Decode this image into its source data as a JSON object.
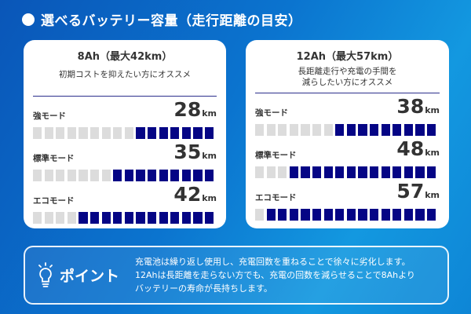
{
  "header": {
    "title": "選べるバッテリー容量（走行距離の目安）"
  },
  "colors": {
    "filled": "#050585",
    "empty": "#dcdcdc",
    "background": "#0b74cf"
  },
  "segments_total": 16,
  "cards": [
    {
      "title": "8Ah（最大42km）",
      "subtitle": [
        "初期コストを抑えたい方にオススメ"
      ],
      "modes": [
        {
          "label": "強モード",
          "value": "28",
          "unit": "km",
          "filled": 7
        },
        {
          "label": "標準モード",
          "value": "35",
          "unit": "km",
          "filled": 9
        },
        {
          "label": "エコモード",
          "value": "42",
          "unit": "km",
          "filled": 12
        }
      ]
    },
    {
      "title": "12Ah（最大57km）",
      "subtitle": [
        "長距離走行や充電の手間を",
        "減らしたい方にオススメ"
      ],
      "modes": [
        {
          "label": "強モード",
          "value": "38",
          "unit": "km",
          "filled": 9
        },
        {
          "label": "標準モード",
          "value": "48",
          "unit": "km",
          "filled": 13
        },
        {
          "label": "エコモード",
          "value": "57",
          "unit": "km",
          "filled": 15
        }
      ]
    }
  ],
  "point": {
    "icon": "lightbulb-icon",
    "title": "ポイント",
    "lines": [
      "充電池は繰り返し使用し、充電回数を重ねることで徐々に劣化します。",
      "12Ahは長距離を走らない方でも、充電の回数を減らせることで8Ahより",
      "バッテリーの寿命が長持ちします。"
    ]
  }
}
